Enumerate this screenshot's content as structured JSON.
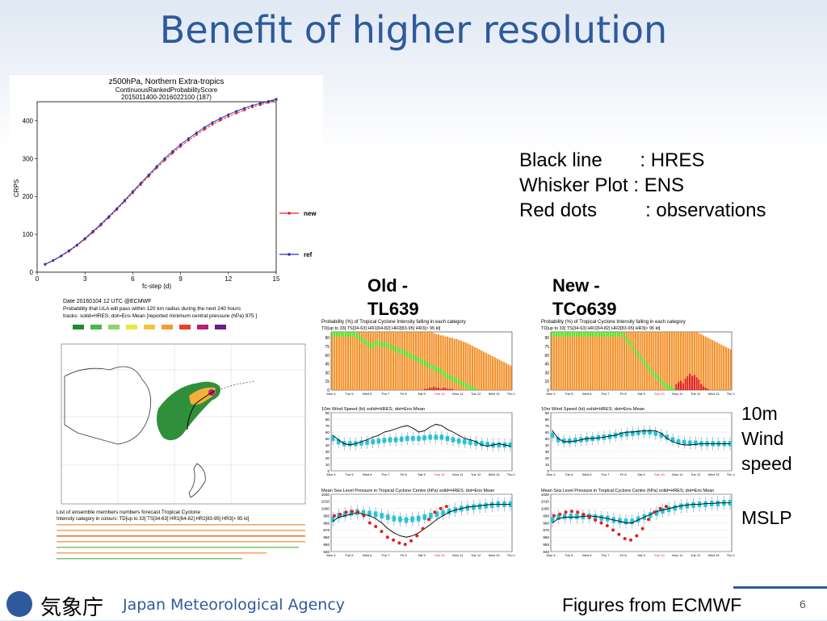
{
  "slide": {
    "title": "Benefit of higher resolution",
    "page_number": "6",
    "credit": "Figures from ECMWF",
    "agency_name_jp": "気象庁",
    "agency_name_en": "Japan Meteorological Agency"
  },
  "legend_box": {
    "line1": "Black line       : HRES",
    "line2": "Whisker Plot : ENS",
    "line3": "Red dots         : observations"
  },
  "labels": {
    "old_line1": "Old -",
    "old_line2": "TL639",
    "new_line1": "New -",
    "new_line2": "TCo639",
    "wind_line1": "10m",
    "wind_line2": "Wind",
    "wind_line3": "speed",
    "mslp": "MSLP"
  },
  "crps_chart": {
    "title1": "z500hPa, Northern Extra-tropics",
    "title2": "ContinuousRankedProbabilityScore",
    "title3": "2015011400-2016022100 (187)",
    "xlabel": "fc-step (d)",
    "ylabel": "CRPS",
    "legend_new": "new",
    "legend_ref": "ref"
  },
  "map": {
    "header1": "Date 20160104 12 UTC   @ECMWF",
    "header2": "Probability that  ULA will pass within 120 km radius during the next  240 hours",
    "header3": "tracks: solid=HRES; dot=Ens Mean [reported minimum central pressure (hPa)  975 ]",
    "footer1": "List of ensemble members numbers forecast Tropical Cyclone",
    "footer2": "Intensity category in colours: TD[up to 33]  TS[34-63]  HR1[64-82]  HR2[83-95]  HR3[> 95 kt]"
  },
  "intensity_panel": {
    "title": "Probability (%) of Tropical Cyclone Intensity falling in each category",
    "subtitle": "TD[up to 33]  TS[34-63]  HR1[64-82]  HR2[83-95]  HR3[> 95 kt]"
  },
  "wind_panel": {
    "title": "10m Wind Speed (kt) solid=HRES; dot=Ens Mean"
  },
  "mslp_panel": {
    "title": "Mean Sea Level Pressure in Tropical Cyclone Centre (hPa) solid=HRES; dot=Ens Mean"
  },
  "date_ticks": [
    "Mon 4",
    "Tue 5",
    "Wed 6",
    "Thu 7",
    "Fri 8",
    "Sat 9",
    "Sun 10",
    "Mon 11",
    "Tue 12",
    "Wed 13",
    "Thu 14"
  ],
  "chart_data": [
    {
      "type": "line",
      "title": "z500hPa, Northern Extra-tropics",
      "xlabel": "fc-step (d)",
      "ylabel": "CRPS",
      "x": [
        0.5,
        1,
        1.5,
        2,
        2.5,
        3,
        3.5,
        4,
        4.5,
        5,
        5.5,
        6,
        6.5,
        7,
        7.5,
        8,
        8.5,
        9,
        9.5,
        10,
        10.5,
        11,
        11.5,
        12,
        12.5,
        13,
        13.5,
        14,
        14.5,
        15
      ],
      "xlim": [
        0,
        15
      ],
      "ylim": [
        0,
        450
      ],
      "xticks": [
        0,
        3,
        6,
        9,
        12,
        15
      ],
      "yticks": [
        0,
        100,
        200,
        300,
        400
      ],
      "series": [
        {
          "name": "new",
          "color": "#e8202a",
          "values": [
            20,
            30,
            42,
            55,
            70,
            87,
            105,
            124,
            144,
            165,
            187,
            209,
            231,
            253,
            275,
            295,
            314,
            332,
            348,
            363,
            377,
            390,
            401,
            411,
            420,
            428,
            436,
            442,
            448,
            455
          ]
        },
        {
          "name": "ref",
          "color": "#2433b5",
          "values": [
            21,
            31,
            43,
            57,
            72,
            89,
            108,
            127,
            147,
            168,
            190,
            213,
            235,
            257,
            279,
            300,
            319,
            337,
            353,
            368,
            382,
            395,
            406,
            416,
            425,
            433,
            440,
            446,
            451,
            457
          ]
        }
      ]
    },
    {
      "type": "bar",
      "title": "Probability (%) of Tropical Cyclone Intensity falling in each category (Old - TL639)",
      "ylim": [
        0,
        100
      ],
      "yticks": [
        0,
        15,
        30,
        45,
        60,
        75,
        90
      ],
      "series": [
        {
          "name": "TS",
          "color": "#f3922b"
        },
        {
          "name": "HR1",
          "color": "#55e52c"
        },
        {
          "name": "HR2",
          "color": "#e3201c"
        }
      ],
      "ts_top": [
        100,
        100,
        100,
        100,
        100,
        100,
        100,
        100,
        100,
        100,
        100,
        100,
        100,
        100,
        100,
        100,
        100,
        100,
        100,
        100,
        100,
        100,
        100,
        100,
        100,
        100,
        100,
        100,
        100,
        100,
        100,
        100,
        100,
        100,
        100,
        100,
        100,
        100,
        100,
        100,
        100,
        100,
        100,
        100,
        100,
        98,
        96,
        96,
        94,
        94,
        92,
        92,
        90,
        90,
        88,
        88,
        86,
        85,
        83,
        82,
        80,
        78,
        76,
        74,
        72,
        70,
        68,
        66,
        64,
        62,
        60,
        58,
        56,
        54,
        52,
        50,
        48,
        46,
        44,
        42
      ],
      "hr1_top": [
        100,
        100,
        100,
        100,
        100,
        100,
        100,
        100,
        100,
        100,
        100,
        98,
        94,
        90,
        88,
        86,
        82,
        80,
        80,
        84,
        85,
        84,
        82,
        82,
        82,
        80,
        78,
        76,
        74,
        72,
        70,
        70,
        68,
        66,
        64,
        62,
        60,
        58,
        56,
        54,
        52,
        50,
        48,
        46,
        44,
        42,
        40,
        38,
        36,
        34,
        30,
        28,
        26,
        24,
        22,
        20,
        18,
        16,
        14,
        12,
        10,
        8,
        6,
        4,
        2,
        0,
        0,
        0,
        0,
        0,
        0,
        0,
        0,
        0,
        0,
        0,
        0,
        0,
        0,
        0
      ],
      "hr2_top": [
        0,
        0,
        0,
        0,
        0,
        0,
        0,
        0,
        0,
        0,
        0,
        0,
        0,
        0,
        0,
        0,
        0,
        0,
        0,
        0,
        0,
        0,
        0,
        0,
        0,
        0,
        0,
        0,
        0,
        0,
        0,
        0,
        0,
        0,
        0,
        0,
        0,
        0,
        0,
        0,
        0,
        2,
        2,
        4,
        4,
        6,
        4,
        4,
        2,
        4,
        4,
        2,
        2,
        2,
        0,
        0,
        0,
        0,
        0,
        0,
        0,
        0,
        0,
        0,
        0,
        0,
        0,
        0,
        0,
        0,
        0,
        0,
        0,
        0,
        0,
        0,
        0,
        0,
        0,
        0
      ]
    },
    {
      "type": "bar",
      "title": "Probability (%) of Tropical Cyclone Intensity falling in each category (New - TCo639)",
      "ylim": [
        0,
        100
      ],
      "yticks": [
        0,
        15,
        30,
        45,
        60,
        75,
        90
      ],
      "series": [
        {
          "name": "TS",
          "color": "#f3922b"
        },
        {
          "name": "HR1",
          "color": "#55e52c"
        },
        {
          "name": "HR2",
          "color": "#e3201c"
        }
      ],
      "ts_top": [
        100,
        100,
        100,
        100,
        100,
        100,
        100,
        100,
        100,
        100,
        100,
        100,
        100,
        100,
        100,
        100,
        100,
        100,
        100,
        100,
        100,
        100,
        100,
        100,
        100,
        100,
        100,
        100,
        100,
        100,
        100,
        100,
        100,
        100,
        100,
        100,
        100,
        100,
        100,
        100,
        100,
        100,
        100,
        100,
        100,
        100,
        100,
        100,
        100,
        100,
        100,
        100,
        100,
        100,
        100,
        100,
        100,
        100,
        100,
        100,
        100,
        100,
        100,
        100,
        100,
        98,
        96,
        94,
        92,
        90,
        88,
        86,
        84,
        82,
        80,
        78,
        76,
        74,
        72,
        70
      ],
      "hr1_top": [
        100,
        100,
        100,
        100,
        100,
        100,
        100,
        100,
        100,
        100,
        100,
        100,
        100,
        100,
        100,
        100,
        100,
        100,
        100,
        100,
        100,
        100,
        100,
        100,
        100,
        100,
        100,
        100,
        100,
        100,
        100,
        100,
        96,
        90,
        86,
        82,
        76,
        70,
        64,
        60,
        56,
        50,
        46,
        40,
        36,
        32,
        28,
        24,
        20,
        16,
        12,
        10,
        8,
        6,
        4,
        2,
        0,
        0,
        0,
        0,
        0,
        0,
        0,
        0,
        0,
        0,
        0,
        0,
        0,
        0,
        0,
        0,
        0,
        0,
        0,
        0,
        0,
        0,
        0,
        0
      ],
      "hr2_top": [
        0,
        0,
        0,
        0,
        0,
        0,
        0,
        0,
        0,
        0,
        0,
        0,
        0,
        0,
        0,
        0,
        0,
        0,
        0,
        0,
        0,
        0,
        0,
        0,
        0,
        0,
        0,
        0,
        0,
        0,
        0,
        0,
        0,
        0,
        0,
        0,
        0,
        0,
        0,
        0,
        0,
        0,
        0,
        0,
        0,
        0,
        0,
        0,
        0,
        0,
        0,
        0,
        0,
        0,
        0,
        10,
        14,
        16,
        12,
        20,
        24,
        28,
        24,
        26,
        22,
        18,
        10,
        6,
        4,
        2,
        0,
        0,
        0,
        0,
        0,
        0,
        0,
        0,
        0,
        0
      ]
    },
    {
      "type": "line",
      "title": "10m Wind Speed (kt) solid=HRES; dot=Ens Mean (Old - TL639)",
      "ylim": [
        0,
        90
      ],
      "yticks": [
        0,
        10,
        20,
        30,
        40,
        50,
        60,
        70,
        80,
        90
      ],
      "series": [
        {
          "name": "HRES",
          "color": "#000000",
          "values": [
            55,
            48,
            42,
            40,
            42,
            45,
            48,
            52,
            55,
            60,
            62,
            65,
            68,
            70,
            66,
            60,
            62,
            68,
            72,
            70,
            64,
            60,
            55,
            50,
            48,
            45,
            40,
            38,
            40,
            42,
            40,
            38
          ]
        },
        {
          "name": "Ens Mean",
          "color": "#29c7d8",
          "values": [
            50,
            45,
            42,
            42,
            42,
            43,
            44,
            45,
            46,
            47,
            48,
            48,
            49,
            50,
            50,
            50,
            51,
            52,
            52,
            52,
            50,
            48,
            46,
            45,
            44,
            43,
            42,
            41,
            40,
            40,
            40,
            40
          ]
        }
      ]
    },
    {
      "type": "line",
      "title": "10m Wind Speed (kt) solid=HRES; dot=Ens Mean (New - TCo639)",
      "ylim": [
        0,
        90
      ],
      "yticks": [
        0,
        10,
        20,
        30,
        40,
        50,
        60,
        70,
        80,
        90
      ],
      "series": [
        {
          "name": "HRES",
          "color": "#000000",
          "values": [
            62,
            50,
            45,
            45,
            46,
            48,
            50,
            50,
            51,
            52,
            54,
            55,
            58,
            60,
            60,
            61,
            62,
            62,
            62,
            58,
            50,
            45,
            42,
            40,
            40,
            41,
            42,
            42,
            42,
            42,
            42,
            42
          ]
        },
        {
          "name": "Ens Mean",
          "color": "#29c7d8",
          "values": [
            55,
            48,
            46,
            46,
            47,
            48,
            49,
            50,
            51,
            52,
            53,
            55,
            56,
            57,
            58,
            59,
            60,
            60,
            58,
            55,
            52,
            48,
            45,
            44,
            43,
            43,
            42,
            42,
            42,
            42,
            42,
            42
          ]
        }
      ]
    },
    {
      "type": "line",
      "title": "Mean Sea Level Pressure in Tropical Cyclone Centre (hPa) (Old - TL639)",
      "ylim": [
        940,
        1020
      ],
      "yticks": [
        940,
        950,
        960,
        970,
        980,
        990,
        1000,
        1010,
        1020
      ],
      "series": [
        {
          "name": "HRES",
          "color": "#000000",
          "values": [
            982,
            988,
            990,
            992,
            994,
            992,
            990,
            986,
            980,
            972,
            966,
            962,
            960,
            962,
            966,
            972,
            978,
            985,
            990,
            995,
            998,
            1000,
            1002,
            1003,
            1004,
            1005,
            1006,
            1006,
            1006,
            1006
          ]
        },
        {
          "name": "Ens Mean",
          "color": "#29c7d8",
          "values": [
            985,
            990,
            992,
            994,
            995,
            994,
            993,
            992,
            990,
            988,
            986,
            985,
            984,
            985,
            986,
            988,
            990,
            992,
            994,
            996,
            998,
            1000,
            1001,
            1002,
            1003,
            1004,
            1005,
            1006,
            1006,
            1006
          ]
        },
        {
          "name": "observations",
          "color": "#e3201c",
          "values": [
            990,
            992,
            995,
            996,
            995,
            990,
            980,
            975,
            968,
            960,
            956,
            952,
            950,
            955,
            962,
            972,
            985,
            995,
            1000,
            1003
          ]
        }
      ]
    },
    {
      "type": "line",
      "title": "Mean Sea Level Pressure in Tropical Cyclone Centre (hPa) (New - TCo639)",
      "ylim": [
        940,
        1020
      ],
      "yticks": [
        940,
        950,
        960,
        970,
        980,
        990,
        1000,
        1010,
        1020
      ],
      "series": [
        {
          "name": "HRES",
          "color": "#000000",
          "values": [
            980,
            986,
            988,
            988,
            988,
            989,
            990,
            989,
            988,
            986,
            984,
            982,
            980,
            980,
            984,
            988,
            992,
            996,
            998,
            1000,
            1002,
            1004,
            1005,
            1006,
            1006,
            1007,
            1007,
            1008,
            1008,
            1008
          ]
        },
        {
          "name": "Ens Mean",
          "color": "#29c7d8",
          "values": [
            984,
            988,
            989,
            989,
            989,
            989,
            989,
            988,
            987,
            986,
            984,
            983,
            982,
            982,
            985,
            988,
            991,
            994,
            997,
            999,
            1001,
            1003,
            1004,
            1005,
            1006,
            1006,
            1007,
            1007,
            1008,
            1008
          ]
        },
        {
          "name": "observations",
          "color": "#e3201c",
          "values": [
            990,
            992,
            995,
            996,
            995,
            992,
            988,
            984,
            980,
            976,
            970,
            964,
            958,
            956,
            962,
            972,
            985,
            995,
            1000,
            1003
          ]
        }
      ]
    }
  ]
}
